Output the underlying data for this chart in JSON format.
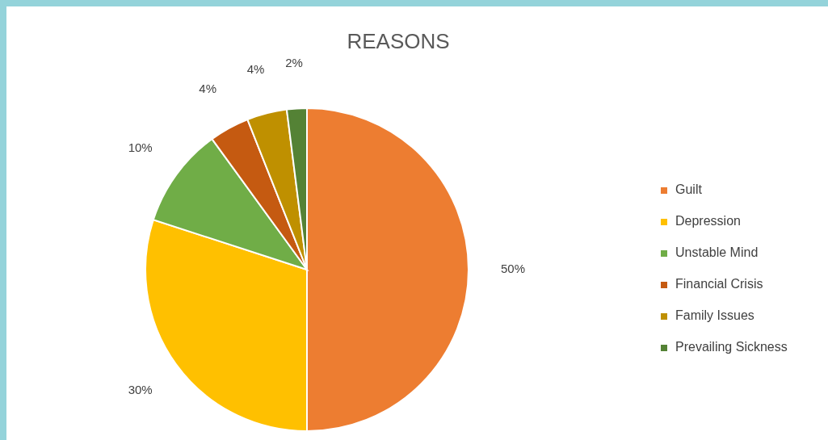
{
  "chart_data": {
    "type": "pie",
    "title": "REASONS",
    "categories": [
      "Guilt",
      "Depression",
      "Unstable Mind",
      "Financial Crisis",
      "Family Issues",
      "Prevailing Sickness"
    ],
    "values": [
      50,
      30,
      10,
      4,
      4,
      2
    ],
    "colors": [
      "#ed7d31",
      "#ffc000",
      "#70ad47",
      "#c55a11",
      "#bf9000",
      "#548235"
    ],
    "value_labels": [
      "50%",
      "30%",
      "10%",
      "4%",
      "4%",
      "2%"
    ],
    "legend": "right"
  }
}
